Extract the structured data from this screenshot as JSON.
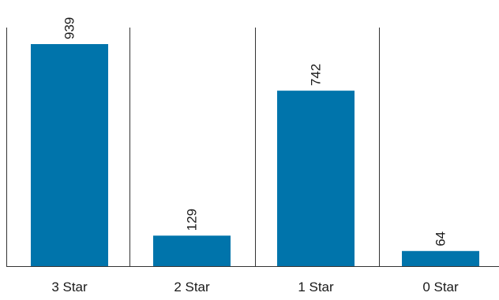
{
  "chart_data": {
    "type": "bar",
    "categories": [
      "3 Star",
      "2 Star",
      "1 Star",
      "0 Star"
    ],
    "values": [
      939,
      129,
      742,
      64
    ],
    "data_labels": [
      "939",
      "129",
      "742",
      "64"
    ],
    "data_label_orientation": "vertical",
    "title": "",
    "xlabel": "",
    "ylabel": "",
    "ylim": [
      0,
      1000
    ],
    "grid": false,
    "legend": "none",
    "colors": {
      "bar": "#0074ab",
      "divider": "#333333",
      "text": "#1a1a1a"
    }
  }
}
